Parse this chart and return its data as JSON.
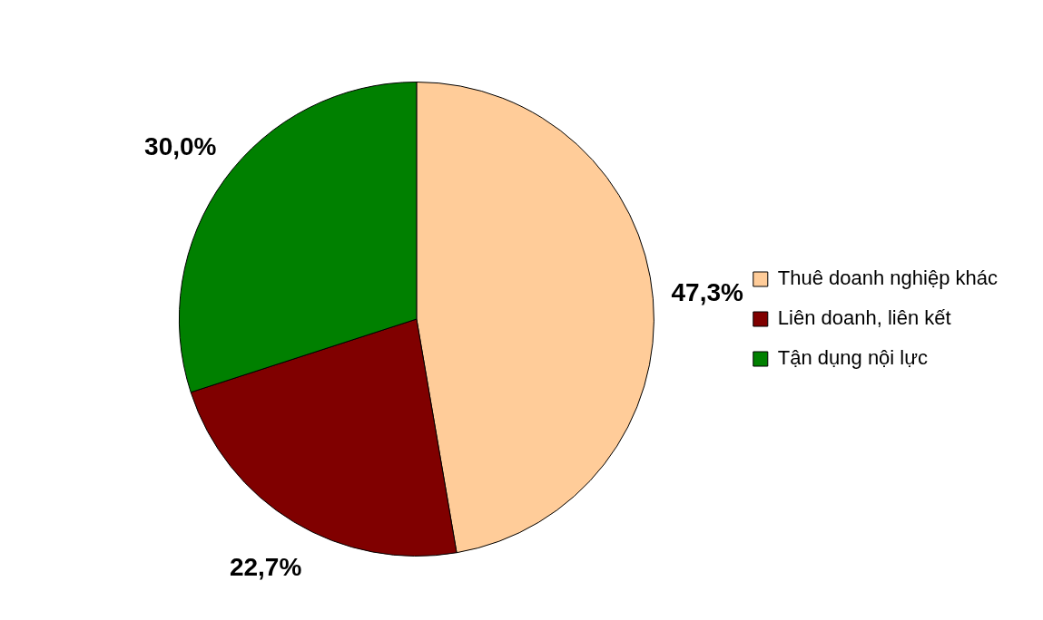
{
  "chart_data": {
    "type": "pie",
    "categories": [
      "Thuê doanh nghiệp khác",
      "Liên doanh, liên kết",
      "Tận dụng nội lực"
    ],
    "values": [
      47.3,
      22.7,
      30.0
    ],
    "colors": [
      "#ffcc99",
      "#800000",
      "#008000"
    ],
    "value_labels": [
      "47,3%",
      "22,7%",
      "30,0%"
    ],
    "legend": "right"
  }
}
